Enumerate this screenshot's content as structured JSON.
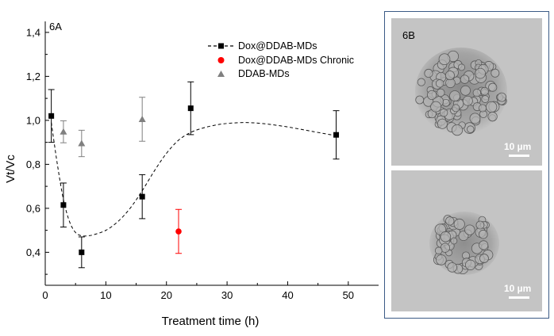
{
  "chart_data": {
    "type": "scatter",
    "panel_label": "6A",
    "xlabel": "Treatment time (h)",
    "ylabel": "Vt/Vc",
    "xlim": [
      0,
      55
    ],
    "ylim": [
      0.25,
      1.45
    ],
    "xticks": [
      0,
      10,
      20,
      30,
      40,
      50
    ],
    "yticks": [
      0.4,
      0.6,
      0.8,
      1.0,
      1.2,
      1.4
    ],
    "ytick_labels": [
      "0,4",
      "0,6",
      "0,8",
      "1,0",
      "1,2",
      "1,4"
    ],
    "xtick_labels": [
      "0",
      "10",
      "20",
      "30",
      "40",
      "50"
    ],
    "legend_position": "top-right",
    "series": [
      {
        "name": "Dox@DDAB-MDs",
        "marker": "square",
        "color": "#000000",
        "x": [
          1,
          3,
          6,
          16,
          24,
          48
        ],
        "y": [
          1.02,
          0.615,
          0.4,
          0.653,
          1.055,
          0.934
        ],
        "err": [
          0.12,
          0.1,
          0.07,
          0.1,
          0.12,
          0.11
        ],
        "fit_line": "dashed",
        "fit_x": [
          1,
          2,
          3,
          4,
          5,
          6,
          7,
          8,
          10,
          12,
          14,
          16,
          18,
          20,
          22,
          24,
          26,
          28,
          30,
          33,
          36,
          40,
          44,
          48
        ],
        "fit_y": [
          0.99,
          0.8,
          0.64,
          0.54,
          0.49,
          0.475,
          0.475,
          0.48,
          0.5,
          0.54,
          0.6,
          0.68,
          0.77,
          0.85,
          0.91,
          0.945,
          0.965,
          0.978,
          0.986,
          0.99,
          0.985,
          0.97,
          0.95,
          0.93
        ]
      },
      {
        "name": "Dox@DDAB-MDs Chronic",
        "marker": "circle",
        "color": "#ff0000",
        "x": [
          22
        ],
        "y": [
          0.495
        ],
        "err": [
          0.1
        ]
      },
      {
        "name": "DDAB-MDs",
        "marker": "triangle",
        "color": "#808080",
        "x": [
          3,
          6,
          16
        ],
        "y": [
          0.948,
          0.895,
          1.005
        ],
        "err": [
          0.05,
          0.06,
          0.1
        ]
      }
    ]
  },
  "micrographs": {
    "panel_label": "6B",
    "top_scale": "10 µm",
    "bottom_scale": "10 µm"
  }
}
